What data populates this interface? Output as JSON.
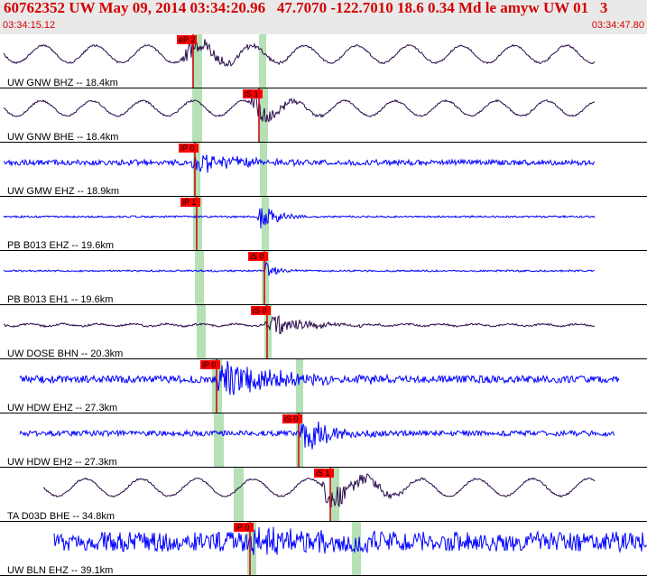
{
  "header": {
    "title": "60762352 UW May 09, 2014 03:34:20.96   47.7070 -122.7010 18.6 0.34 Md le amyw UW 01   3",
    "start_time": "03:34:15.12",
    "end_time": "03:34:47.80",
    "background": "#e9e9e9",
    "text_color": "#d40000"
  },
  "colors": {
    "pick_flag": "#ff0000",
    "pick_line": "#cc0000",
    "window_band": "#b6e0b6",
    "trace_dark": "#2a0a4a",
    "trace_blue": "#0000ff"
  },
  "traces": [
    {
      "label": "UW GNW BHZ -- 18.4km",
      "pick": "eP 2",
      "color": "dark"
    },
    {
      "label": "UW GNW BHE -- 18.4km",
      "pick": "iS 1",
      "color": "dark"
    },
    {
      "label": "UW GMW EHZ -- 18.9km",
      "pick": "iP 0",
      "color": "blue"
    },
    {
      "label": "PB B013 EHZ -- 19.6km",
      "pick": "iP 1",
      "color": "blue"
    },
    {
      "label": "PB B013 EH1 -- 19.6km",
      "pick": "iS 0",
      "color": "blue"
    },
    {
      "label": "UW DOSE BHN -- 20.3km",
      "pick": "iS 0",
      "color": "dark"
    },
    {
      "label": "UW HDW EHZ -- 27.3km",
      "pick": "iP 0",
      "color": "blue"
    },
    {
      "label": "UW HDW EH2 -- 27.3km",
      "pick": "iS 0",
      "color": "blue"
    },
    {
      "label": "TA D03D BHE -- 34.8km",
      "pick": "iS 1",
      "color": "dark"
    },
    {
      "label": "UW BLN EHZ -- 39.1km",
      "pick": "iP 0",
      "color": "blue"
    }
  ]
}
